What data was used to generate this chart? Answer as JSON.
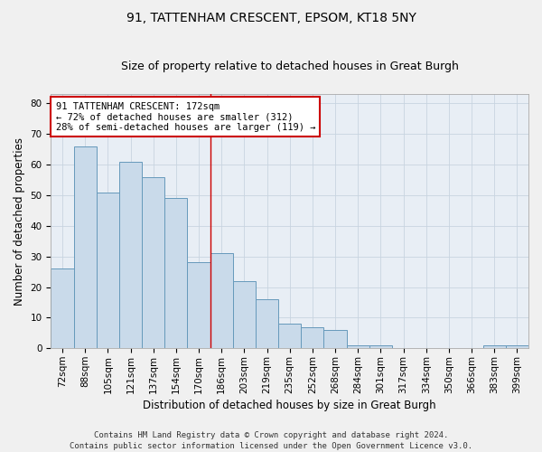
{
  "title1": "91, TATTENHAM CRESCENT, EPSOM, KT18 5NY",
  "title2": "Size of property relative to detached houses in Great Burgh",
  "xlabel": "Distribution of detached houses by size in Great Burgh",
  "ylabel": "Number of detached properties",
  "footer1": "Contains HM Land Registry data © Crown copyright and database right 2024.",
  "footer2": "Contains public sector information licensed under the Open Government Licence v3.0.",
  "categories": [
    "72sqm",
    "88sqm",
    "105sqm",
    "121sqm",
    "137sqm",
    "154sqm",
    "170sqm",
    "186sqm",
    "203sqm",
    "219sqm",
    "235sqm",
    "252sqm",
    "268sqm",
    "284sqm",
    "301sqm",
    "317sqm",
    "334sqm",
    "350sqm",
    "366sqm",
    "383sqm",
    "399sqm"
  ],
  "values": [
    26,
    66,
    51,
    61,
    56,
    49,
    28,
    31,
    22,
    16,
    8,
    7,
    6,
    1,
    1,
    0,
    0,
    0,
    0,
    1,
    1
  ],
  "bar_color": "#c9daea",
  "bar_edge_color": "#6699bb",
  "reference_line_color": "#cc0000",
  "reference_line_index": 6,
  "annotation_text": "91 TATTENHAM CRESCENT: 172sqm\n← 72% of detached houses are smaller (312)\n28% of semi-detached houses are larger (119) →",
  "annotation_box_facecolor": "#ffffff",
  "annotation_box_edgecolor": "#cc0000",
  "ylim": [
    0,
    83
  ],
  "yticks": [
    0,
    10,
    20,
    30,
    40,
    50,
    60,
    70,
    80
  ],
  "grid_color": "#c8d4e0",
  "plot_bg_color": "#e8eef5",
  "fig_bg_color": "#f0f0f0",
  "title_fontsize": 10,
  "subtitle_fontsize": 9,
  "axis_label_fontsize": 8.5,
  "tick_fontsize": 7.5,
  "annotation_fontsize": 7.5,
  "footer_fontsize": 6.5
}
